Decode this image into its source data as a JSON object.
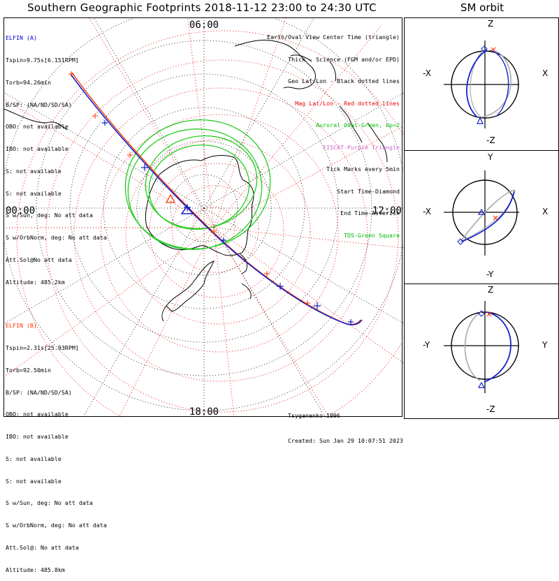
{
  "title": "Southern Geographic Footprints 2018-11-12 23:00 to 24:30 UTC",
  "orbit_title": "SM orbit",
  "clock_labels": {
    "top": "06:00",
    "left": "00:00",
    "right": "12:00",
    "bottom": "18:00"
  },
  "elfin_a": {
    "name": "ELFIN (A)",
    "color": "#0000cc",
    "lines": [
      "Tspin=9.75s[6.151RPM]",
      "Torb=94.26min",
      "B/SP: (NA/ND/SD/SA)",
      "OBO: not available",
      "IBO: not available",
      "S: not available",
      "S: not available",
      "S w/Sun, deg: No att data",
      "S w/OrbNorm, deg: No att data",
      "Att.Sol@No att data",
      "Altitude: 485.2km"
    ]
  },
  "elfin_b": {
    "name": "ELFIN (B)",
    "color": "#ff3300",
    "lines": [
      "Tspin=2.31s[25.93RPM]",
      "Torb=92.50min",
      "B/SP: (NA/ND/SD/SA)",
      "OBO: not available",
      "IBO: not available",
      "S: not available",
      "S: not available",
      "S w/Sun, deg: No att data",
      "S w/OrbNorm, deg: No att data",
      "Att.Sol@: No att data",
      "Altitude: 485.8km"
    ]
  },
  "legend": [
    {
      "text": "Earth/Oval View Center Time (triangle)",
      "color": "#000000"
    },
    {
      "text": "Thick - Science (FGM and/or EPD)",
      "color": "#000000"
    },
    {
      "text": "Geo Lat/Lon - Black dotted lines",
      "color": "#000000"
    },
    {
      "text": "Mag Lat/Lon - Red dotted lines",
      "color": "#ee0000"
    },
    {
      "text": "Auroral Oval-Green, kp=2",
      "color": "#00bb00"
    },
    {
      "text": "EISCAT-Purple Triangle",
      "color": "#cc66cc"
    },
    {
      "text": "Tick Marks every 5min",
      "color": "#000000"
    },
    {
      "text": "Start Time-Diamond",
      "color": "#000000"
    },
    {
      "text": "End Time-Asterisk",
      "color": "#000000"
    },
    {
      "text": "TDS-Green Square",
      "color": "#00bb00"
    }
  ],
  "credits": [
    "Tsyganenko-1996",
    "Created: Sun Jan 29 10:07:51 2023"
  ],
  "orbit_panels": [
    {
      "top": "Z",
      "bottom": "-Z",
      "left": "-X",
      "right": "X"
    },
    {
      "top": "Y",
      "bottom": "-Y",
      "left": "-X",
      "right": "X"
    },
    {
      "top": "Z",
      "bottom": "-Z",
      "left": "-Y",
      "right": "Y"
    }
  ]
}
